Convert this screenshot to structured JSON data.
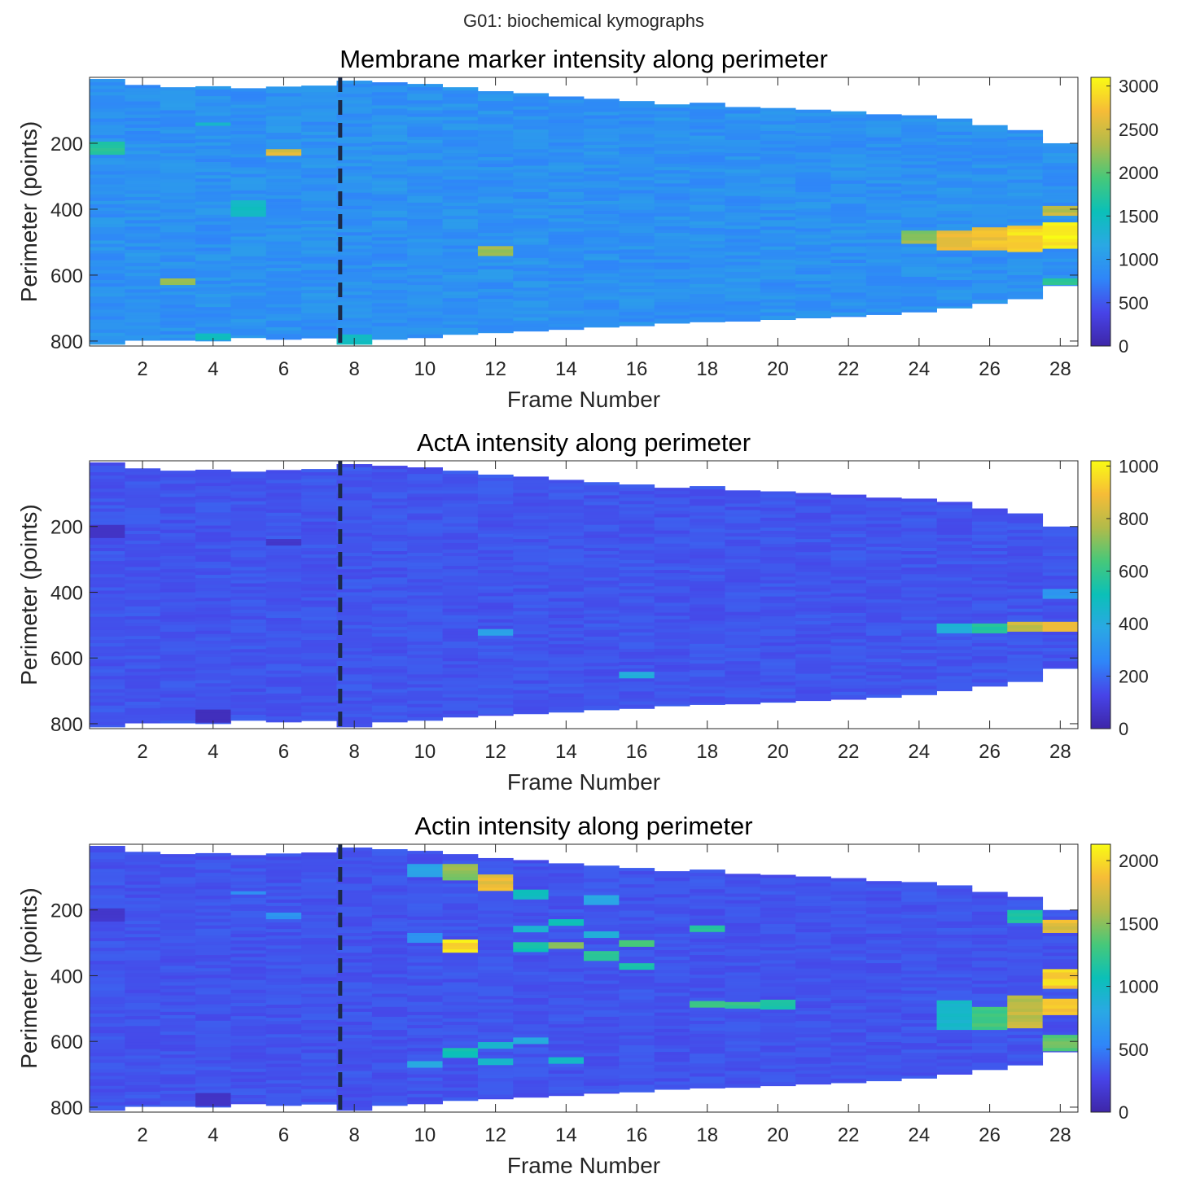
{
  "figure": {
    "suptitle": "G01: biochemical kymographs"
  },
  "colormap": [
    "#3e26a8",
    "#4744e8",
    "#2f86f8",
    "#2aa8e4",
    "#0bc0b8",
    "#46c87a",
    "#b1bb4a",
    "#f6bc37",
    "#f9fb14"
  ],
  "chart_data": [
    {
      "type": "heatmap",
      "title": "Membrane marker intensity along perimeter",
      "xlabel": "Frame Number",
      "ylabel": "Perimeter (points)",
      "x_ticks": [
        "2",
        "4",
        "6",
        "8",
        "10",
        "12",
        "14",
        "16",
        "18",
        "20",
        "22",
        "24",
        "26",
        "28"
      ],
      "y_ticks": [
        "200",
        "400",
        "600",
        "800"
      ],
      "xlim": [
        0.5,
        28.5
      ],
      "ylim": [
        0,
        815
      ],
      "y_reversed": true,
      "frames": [
        1,
        2,
        3,
        4,
        5,
        6,
        7,
        8,
        9,
        10,
        11,
        12,
        13,
        14,
        15,
        16,
        17,
        18,
        19,
        20,
        21,
        22,
        23,
        24,
        25,
        26,
        27,
        28
      ],
      "perimeter_start": [
        5,
        23,
        30,
        27,
        33,
        28,
        25,
        10,
        15,
        20,
        30,
        42,
        48,
        58,
        65,
        72,
        82,
        77,
        90,
        93,
        98,
        103,
        112,
        115,
        125,
        145,
        160,
        200
      ],
      "perimeter_end": [
        810,
        798,
        798,
        800,
        790,
        795,
        791,
        810,
        795,
        790,
        780,
        775,
        770,
        765,
        758,
        754,
        746,
        742,
        740,
        735,
        730,
        726,
        720,
        712,
        700,
        686,
        672,
        632
      ],
      "background_value": 900,
      "hotspots": [
        {
          "frame": 1,
          "perimeter": [
            195,
            235
          ],
          "value": 1700
        },
        {
          "frame": 3,
          "perimeter": [
            610,
            630
          ],
          "value": 2150
        },
        {
          "frame": 4,
          "perimeter": [
            140,
            150
          ],
          "value": 1400
        },
        {
          "frame": 4,
          "perimeter": [
            780,
            800
          ],
          "value": 1500
        },
        {
          "frame": 5,
          "perimeter": [
            370,
            420
          ],
          "value": 1450
        },
        {
          "frame": 6,
          "perimeter": [
            215,
            240
          ],
          "value": 2600
        },
        {
          "frame": 8,
          "perimeter": [
            785,
            810
          ],
          "value": 1500
        },
        {
          "frame": 12,
          "perimeter": [
            515,
            540
          ],
          "value": 2300
        },
        {
          "frame": 24,
          "perimeter": [
            470,
            500
          ],
          "value": 2200
        },
        {
          "frame": 25,
          "perimeter": [
            470,
            520
          ],
          "value": 2600
        },
        {
          "frame": 26,
          "perimeter": [
            460,
            520
          ],
          "value": 2700
        },
        {
          "frame": 27,
          "perimeter": [
            450,
            530
          ],
          "value": 2900
        },
        {
          "frame": 28,
          "perimeter": [
            440,
            520
          ],
          "value": 3000
        },
        {
          "frame": 28,
          "perimeter": [
            390,
            420
          ],
          "value": 2400
        },
        {
          "frame": 28,
          "perimeter": [
            610,
            632
          ],
          "value": 1800
        }
      ],
      "colorbar": {
        "min": 0,
        "max": 3100,
        "ticks": [
          "0",
          "500",
          "1000",
          "1500",
          "2000",
          "2500",
          "3000"
        ]
      },
      "marker_frame": 7.6
    },
    {
      "type": "heatmap",
      "title": "ActA intensity along perimeter",
      "xlabel": "Frame Number",
      "ylabel": "Perimeter (points)",
      "x_ticks": [
        "2",
        "4",
        "6",
        "8",
        "10",
        "12",
        "14",
        "16",
        "18",
        "20",
        "22",
        "24",
        "26",
        "28"
      ],
      "y_ticks": [
        "200",
        "400",
        "600",
        "800"
      ],
      "xlim": [
        0.5,
        28.5
      ],
      "ylim": [
        0,
        815
      ],
      "y_reversed": true,
      "frames": [
        1,
        2,
        3,
        4,
        5,
        6,
        7,
        8,
        9,
        10,
        11,
        12,
        13,
        14,
        15,
        16,
        17,
        18,
        19,
        20,
        21,
        22,
        23,
        24,
        25,
        26,
        27,
        28
      ],
      "perimeter_start": [
        5,
        23,
        30,
        27,
        33,
        28,
        25,
        10,
        15,
        20,
        30,
        42,
        48,
        58,
        65,
        72,
        82,
        77,
        90,
        93,
        98,
        103,
        112,
        115,
        125,
        145,
        160,
        200
      ],
      "perimeter_end": [
        810,
        798,
        798,
        800,
        790,
        795,
        791,
        810,
        795,
        790,
        780,
        775,
        770,
        765,
        758,
        754,
        746,
        742,
        740,
        735,
        730,
        726,
        720,
        712,
        700,
        686,
        672,
        632
      ],
      "background_value": 160,
      "hotspots": [
        {
          "frame": 1,
          "perimeter": [
            195,
            230
          ],
          "value": 60
        },
        {
          "frame": 4,
          "perimeter": [
            755,
            795
          ],
          "value": 40
        },
        {
          "frame": 6,
          "perimeter": [
            235,
            255
          ],
          "value": 70
        },
        {
          "frame": 12,
          "perimeter": [
            515,
            530
          ],
          "value": 350
        },
        {
          "frame": 16,
          "perimeter": [
            645,
            660
          ],
          "value": 420
        },
        {
          "frame": 25,
          "perimeter": [
            500,
            525
          ],
          "value": 420
        },
        {
          "frame": 26,
          "perimeter": [
            495,
            520
          ],
          "value": 560
        },
        {
          "frame": 27,
          "perimeter": [
            490,
            515
          ],
          "value": 800
        },
        {
          "frame": 28,
          "perimeter": [
            495,
            515
          ],
          "value": 900
        },
        {
          "frame": 28,
          "perimeter": [
            390,
            420
          ],
          "value": 320
        }
      ],
      "colorbar": {
        "min": 0,
        "max": 1020,
        "ticks": [
          "0",
          "200",
          "400",
          "600",
          "800",
          "1000"
        ]
      },
      "marker_frame": 7.6
    },
    {
      "type": "heatmap",
      "title": "Actin intensity along perimeter",
      "xlabel": "Frame Number",
      "ylabel": "Perimeter (points)",
      "x_ticks": [
        "2",
        "4",
        "6",
        "8",
        "10",
        "12",
        "14",
        "16",
        "18",
        "20",
        "22",
        "24",
        "26",
        "28"
      ],
      "y_ticks": [
        "200",
        "400",
        "600",
        "800"
      ],
      "xlim": [
        0.5,
        28.5
      ],
      "ylim": [
        0,
        815
      ],
      "y_reversed": true,
      "frames": [
        1,
        2,
        3,
        4,
        5,
        6,
        7,
        8,
        9,
        10,
        11,
        12,
        13,
        14,
        15,
        16,
        17,
        18,
        19,
        20,
        21,
        22,
        23,
        24,
        25,
        26,
        27,
        28
      ],
      "perimeter_start": [
        5,
        23,
        30,
        27,
        33,
        28,
        25,
        10,
        15,
        20,
        30,
        42,
        48,
        58,
        65,
        72,
        82,
        77,
        90,
        93,
        98,
        103,
        112,
        115,
        125,
        145,
        160,
        200
      ],
      "perimeter_end": [
        810,
        798,
        798,
        800,
        790,
        795,
        791,
        810,
        795,
        790,
        780,
        775,
        770,
        765,
        758,
        754,
        746,
        742,
        740,
        735,
        730,
        726,
        720,
        712,
        700,
        686,
        672,
        632
      ],
      "background_value": 330,
      "hotspots": [
        {
          "frame": 1,
          "perimeter": [
            200,
            235
          ],
          "value": 150
        },
        {
          "frame": 4,
          "perimeter": [
            755,
            795
          ],
          "value": 120
        },
        {
          "frame": 5,
          "perimeter": [
            140,
            155
          ],
          "value": 600
        },
        {
          "frame": 6,
          "perimeter": [
            205,
            225
          ],
          "value": 650
        },
        {
          "frame": 10,
          "perimeter": [
            60,
            100
          ],
          "value": 750
        },
        {
          "frame": 10,
          "perimeter": [
            270,
            295
          ],
          "value": 650
        },
        {
          "frame": 10,
          "perimeter": [
            660,
            680
          ],
          "value": 800
        },
        {
          "frame": 11,
          "perimeter": [
            60,
            110
          ],
          "value": 1500
        },
        {
          "frame": 11,
          "perimeter": [
            290,
            330
          ],
          "value": 2000
        },
        {
          "frame": 11,
          "perimeter": [
            625,
            650
          ],
          "value": 1100
        },
        {
          "frame": 12,
          "perimeter": [
            95,
            145
          ],
          "value": 1800
        },
        {
          "frame": 12,
          "perimeter": [
            600,
            625
          ],
          "value": 900
        },
        {
          "frame": 12,
          "perimeter": [
            650,
            670
          ],
          "value": 950
        },
        {
          "frame": 13,
          "perimeter": [
            140,
            170
          ],
          "value": 1000
        },
        {
          "frame": 13,
          "perimeter": [
            250,
            270
          ],
          "value": 900
        },
        {
          "frame": 13,
          "perimeter": [
            300,
            330
          ],
          "value": 1100
        },
        {
          "frame": 13,
          "perimeter": [
            590,
            605
          ],
          "value": 850
        },
        {
          "frame": 14,
          "perimeter": [
            230,
            250
          ],
          "value": 1050
        },
        {
          "frame": 14,
          "perimeter": [
            300,
            320
          ],
          "value": 1450
        },
        {
          "frame": 14,
          "perimeter": [
            645,
            665
          ],
          "value": 950
        },
        {
          "frame": 15,
          "perimeter": [
            160,
            180
          ],
          "value": 800
        },
        {
          "frame": 15,
          "perimeter": [
            265,
            285
          ],
          "value": 900
        },
        {
          "frame": 15,
          "perimeter": [
            330,
            350
          ],
          "value": 1200
        },
        {
          "frame": 16,
          "perimeter": [
            290,
            310
          ],
          "value": 1300
        },
        {
          "frame": 16,
          "perimeter": [
            365,
            385
          ],
          "value": 1150
        },
        {
          "frame": 18,
          "perimeter": [
            250,
            265
          ],
          "value": 1200
        },
        {
          "frame": 18,
          "perimeter": [
            475,
            500
          ],
          "value": 1300
        },
        {
          "frame": 19,
          "perimeter": [
            480,
            500
          ],
          "value": 1250
        },
        {
          "frame": 20,
          "perimeter": [
            470,
            500
          ],
          "value": 1100
        },
        {
          "frame": 25,
          "perimeter": [
            480,
            560
          ],
          "value": 950
        },
        {
          "frame": 26,
          "perimeter": [
            500,
            560
          ],
          "value": 1300
        },
        {
          "frame": 27,
          "perimeter": [
            200,
            240
          ],
          "value": 1150
        },
        {
          "frame": 27,
          "perimeter": [
            460,
            560
          ],
          "value": 1650
        },
        {
          "frame": 28,
          "perimeter": [
            230,
            270
          ],
          "value": 1800
        },
        {
          "frame": 28,
          "perimeter": [
            380,
            440
          ],
          "value": 1950
        },
        {
          "frame": 28,
          "perimeter": [
            470,
            520
          ],
          "value": 1900
        },
        {
          "frame": 28,
          "perimeter": [
            580,
            632
          ],
          "value": 1400
        }
      ],
      "colorbar": {
        "min": 0,
        "max": 2130,
        "ticks": [
          "0",
          "500",
          "1000",
          "1500",
          "2000"
        ]
      },
      "marker_frame": 7.6
    }
  ]
}
